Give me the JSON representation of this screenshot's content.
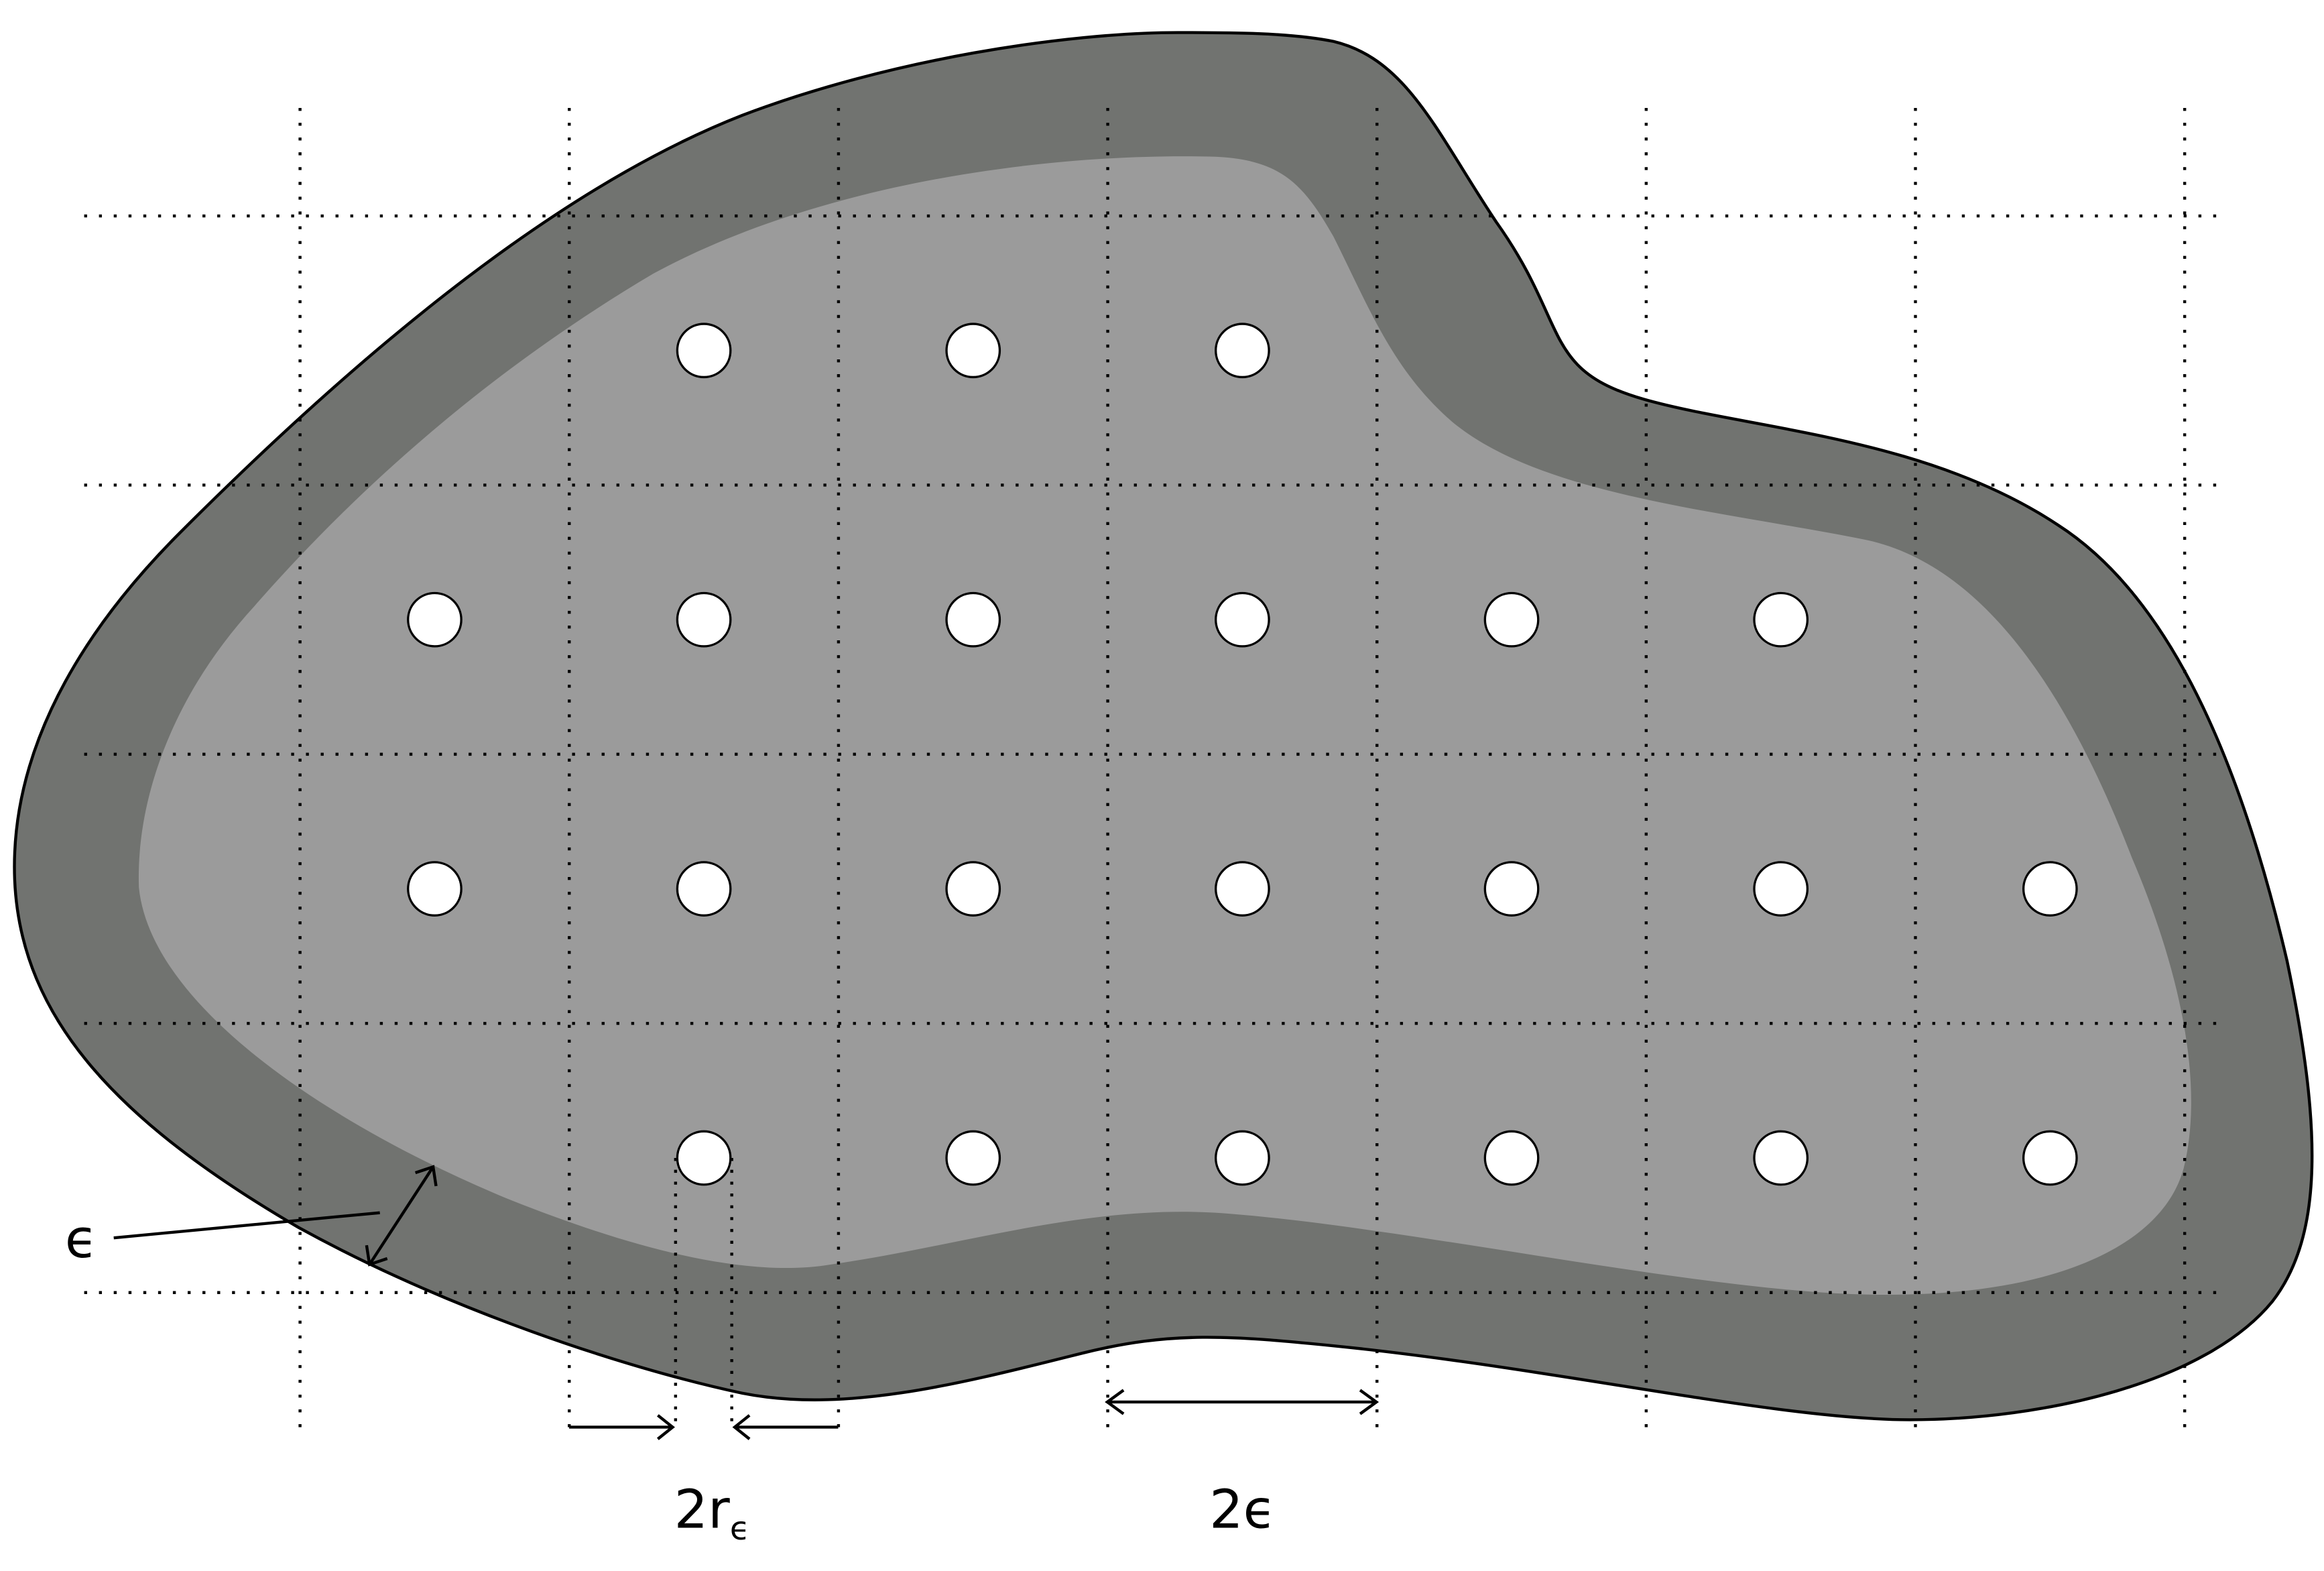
{
  "colors": {
    "outer_band": "#717370",
    "inner_region": "#9b9b9b",
    "grid": "#000000",
    "dots": "#ffffff",
    "stroke": "#000000"
  },
  "labels": {
    "epsilon": "ϵ",
    "two_r_eps_main": "2r",
    "two_r_eps_sub": "ϵ",
    "two_eps": "2ϵ"
  },
  "grid": {
    "style": "dotted",
    "vertical_lines": 8,
    "horizontal_lines": 5
  },
  "dots": {
    "rows": [
      [
        2,
        3,
        4
      ],
      [
        1,
        2,
        3,
        4,
        5,
        6
      ],
      [
        1,
        2,
        3,
        4,
        5,
        6,
        7
      ],
      [
        2,
        3,
        4,
        5,
        6,
        7
      ]
    ]
  }
}
